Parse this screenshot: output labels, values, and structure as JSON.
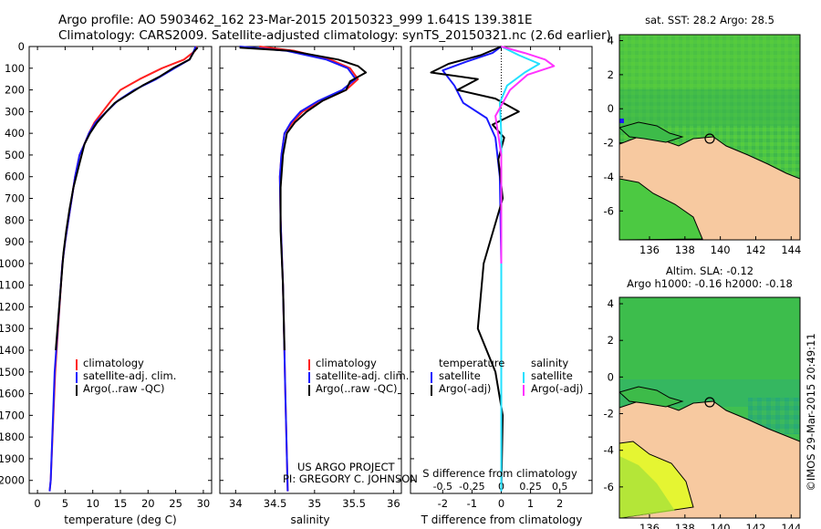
{
  "header": {
    "line1": "Argo profile: AO 5903462_162 23-Mar-2015 20150323_999 1.641S 139.381E",
    "line2": "Climatology: CARS2009. Satellite-adjusted climatology: synTS_20150321.nc (2.6d earlier)"
  },
  "colors": {
    "climatology": "#ff2020",
    "satellite": "#1a1aff",
    "argo": "#000000",
    "sal_satellite": "#22e0ff",
    "sal_argo": "#ff33ff",
    "land": "#f7c9a0"
  },
  "chart_data": [
    {
      "id": "temperature",
      "type": "line",
      "xlabel": "temperature (deg C)",
      "xlim": [
        -1.5,
        31.5
      ],
      "xticks": [
        0,
        5,
        10,
        15,
        20,
        25,
        30
      ],
      "ylim": [
        0,
        2060
      ],
      "yticks": [
        0,
        100,
        200,
        300,
        400,
        500,
        600,
        700,
        800,
        900,
        1000,
        1100,
        1200,
        1300,
        1400,
        1500,
        1600,
        1700,
        1800,
        1900,
        2000
      ],
      "legend": [
        "climatology",
        "satellite-adj. clim.",
        "Argo(..raw -QC)"
      ],
      "series": [
        {
          "name": "climatology",
          "color": "#ff2020",
          "x": [
            28.8,
            28.5,
            26.5,
            22.5,
            18.5,
            15,
            13.3,
            11.8,
            10.3,
            9.3,
            8.5,
            7.6,
            6.8,
            6.2,
            5.6,
            5,
            4.5,
            3.2,
            2.4,
            2.2
          ],
          "y": [
            0,
            20,
            60,
            100,
            150,
            200,
            250,
            300,
            350,
            400,
            450,
            500,
            600,
            700,
            800,
            900,
            1000,
            1500,
            2000,
            2050
          ]
        },
        {
          "name": "satellite-adj. clim.",
          "color": "#1a1aff",
          "x": [
            28.6,
            28.3,
            27.5,
            24.8,
            21.5,
            17.5,
            14.5,
            12.5,
            10.5,
            9.3,
            8.5,
            7.6,
            6.8,
            6.2,
            5.6,
            5,
            4.5,
            3.1,
            2.4,
            2.2
          ],
          "y": [
            0,
            20,
            60,
            100,
            150,
            200,
            250,
            300,
            350,
            400,
            450,
            500,
            600,
            700,
            800,
            900,
            1000,
            1500,
            2000,
            2050
          ]
        },
        {
          "name": "Argo(..raw -QC)",
          "color": "#000000",
          "x": [
            29,
            28.4,
            27.5,
            24.5,
            22,
            19,
            16.5,
            14,
            12.5,
            10.8,
            9.5,
            8.5,
            7.5,
            6.5,
            5.8,
            5.2,
            4.7,
            3.3
          ],
          "y": [
            5,
            20,
            60,
            100,
            140,
            180,
            220,
            260,
            300,
            350,
            400,
            450,
            550,
            650,
            750,
            850,
            950,
            1400
          ]
        }
      ]
    },
    {
      "id": "salinity",
      "type": "line",
      "xlabel": "salinity",
      "xlim": [
        33.8,
        36.1
      ],
      "xticks": [
        34,
        34.5,
        35,
        35.5,
        36
      ],
      "ylim": [
        0,
        2060
      ],
      "legend": [
        "climatology",
        "satellite-adj. clim.",
        "Argo(..raw -QC)"
      ],
      "series": [
        {
          "name": "climatology",
          "color": "#ff2020",
          "x": [
            34.3,
            34.75,
            35.2,
            35.45,
            35.55,
            35.4,
            35.1,
            34.85,
            34.72,
            34.62,
            34.58,
            34.56,
            34.57,
            34.6,
            34.63,
            34.66
          ],
          "y": [
            0,
            20,
            60,
            100,
            150,
            200,
            250,
            300,
            350,
            400,
            500,
            600,
            800,
            1100,
            1600,
            2050
          ]
        },
        {
          "name": "satellite-adj. clim.",
          "color": "#1a1aff",
          "x": [
            34.05,
            34.65,
            35.15,
            35.42,
            35.52,
            35.35,
            35.05,
            34.82,
            34.7,
            34.62,
            34.58,
            34.56,
            34.57,
            34.6,
            34.63,
            34.66
          ],
          "y": [
            0,
            20,
            60,
            100,
            150,
            200,
            250,
            300,
            350,
            400,
            500,
            600,
            800,
            1100,
            1600,
            2050
          ]
        },
        {
          "name": "Argo(..raw -QC)",
          "color": "#000000",
          "x": [
            34.05,
            34.7,
            35.3,
            35.55,
            35.65,
            35.45,
            35.4,
            35.1,
            34.9,
            34.75,
            34.65,
            34.6,
            34.57,
            34.57,
            34.6,
            34.62
          ],
          "y": [
            5,
            20,
            60,
            90,
            120,
            160,
            200,
            250,
            300,
            350,
            400,
            500,
            650,
            850,
            1100,
            1400
          ]
        }
      ]
    },
    {
      "id": "difference",
      "type": "line",
      "xlabel_top": "S difference from climatology",
      "xlabel": "T difference from climatology",
      "xlim": [
        -3.1,
        3.1
      ],
      "xticks": [
        -2,
        -1,
        0,
        1,
        2
      ],
      "xticks_top": [
        -0.5,
        -0.25,
        0,
        0.25,
        0.5
      ],
      "ylim": [
        0,
        2060
      ],
      "legend_temperature": {
        "title": "temperature",
        "items": [
          "satellite",
          "Argo(-adj)"
        ]
      },
      "legend_salinity": {
        "title": "salinity",
        "items": [
          "satellite",
          "Argo(-adj)"
        ]
      },
      "series": [
        {
          "name": "temperature satellite",
          "color": "#1a1aff",
          "x": [
            0,
            -0.3,
            -1.2,
            -2,
            -1.6,
            -1.3,
            -0.5,
            -0.2,
            -0.05,
            0,
            0
          ],
          "y": [
            0,
            30,
            70,
            110,
            180,
            260,
            330,
            420,
            600,
            1000,
            2050
          ]
        },
        {
          "name": "temperature Argo(-adj)",
          "color": "#000000",
          "x": [
            0,
            -0.7,
            -1.8,
            -2.4,
            -0.8,
            -1.5,
            -0.2,
            0.6,
            -0.3,
            0.1,
            -0.1,
            0.05,
            -0.6,
            -0.8,
            -0.2,
            0.05,
            0
          ],
          "y": [
            0,
            40,
            80,
            120,
            150,
            200,
            240,
            300,
            360,
            420,
            520,
            700,
            1000,
            1300,
            1500,
            1700,
            2050
          ]
        },
        {
          "name": "salinity satellite",
          "color": "#22e0ff",
          "x": [
            0,
            0.6,
            1.3,
            0.8,
            0.2,
            -0.05,
            0,
            0,
            0,
            0
          ],
          "y": [
            0,
            40,
            80,
            120,
            180,
            260,
            400,
            700,
            1200,
            2050
          ]
        },
        {
          "name": "salinity Argo(-adj)",
          "color": "#ff33ff",
          "x": [
            0,
            0.8,
            1.5,
            1.8,
            0.9,
            0.3,
            -0.2,
            0,
            0,
            0
          ],
          "y": [
            0,
            30,
            60,
            90,
            130,
            200,
            320,
            500,
            700,
            1000
          ]
        }
      ]
    }
  ],
  "maps": [
    {
      "title": "sat. SST: 28.2 Argo: 28.5",
      "xticks": [
        136,
        138,
        140,
        142,
        144
      ],
      "yticks": [
        4,
        2,
        0,
        -2,
        -4,
        -6
      ]
    },
    {
      "title": "Altim. SLA: -0.12",
      "subtitle": "Argo h1000: -0.16 h2000: -0.18",
      "xticks": [
        136,
        138,
        140,
        142,
        144
      ],
      "yticks": [
        4,
        2,
        0,
        -2,
        -4,
        -6
      ]
    }
  ],
  "project": {
    "line1": "US ARGO PROJECT",
    "line2": "PI: GREGORY C. JOHNSON"
  },
  "stamp": "©IMOS 29-Mar-2015 20:49:11"
}
